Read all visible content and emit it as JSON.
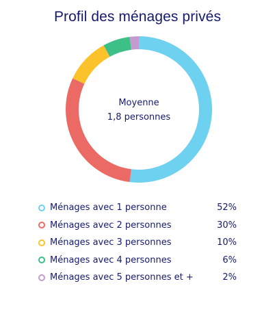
{
  "chart_data": {
    "type": "pie",
    "title": "Profil des ménages privés",
    "center_text": [
      "Moyenne",
      "1,8 personnes"
    ],
    "categories": [
      "Ménages avec 1 personne",
      "Ménages avec 2 personnes",
      "Ménages avec 3 personnes",
      "Ménages avec 4 personnes",
      "Ménages avec 5 personnes et +"
    ],
    "values": [
      52,
      30,
      10,
      6,
      2
    ],
    "value_labels": [
      "52%",
      "30%",
      "10%",
      "6%",
      "2%"
    ],
    "colors": [
      "#6ed1ef",
      "#eb6a65",
      "#fcc22c",
      "#3dbf88",
      "#c49bd0"
    ],
    "legend": "bottom"
  }
}
